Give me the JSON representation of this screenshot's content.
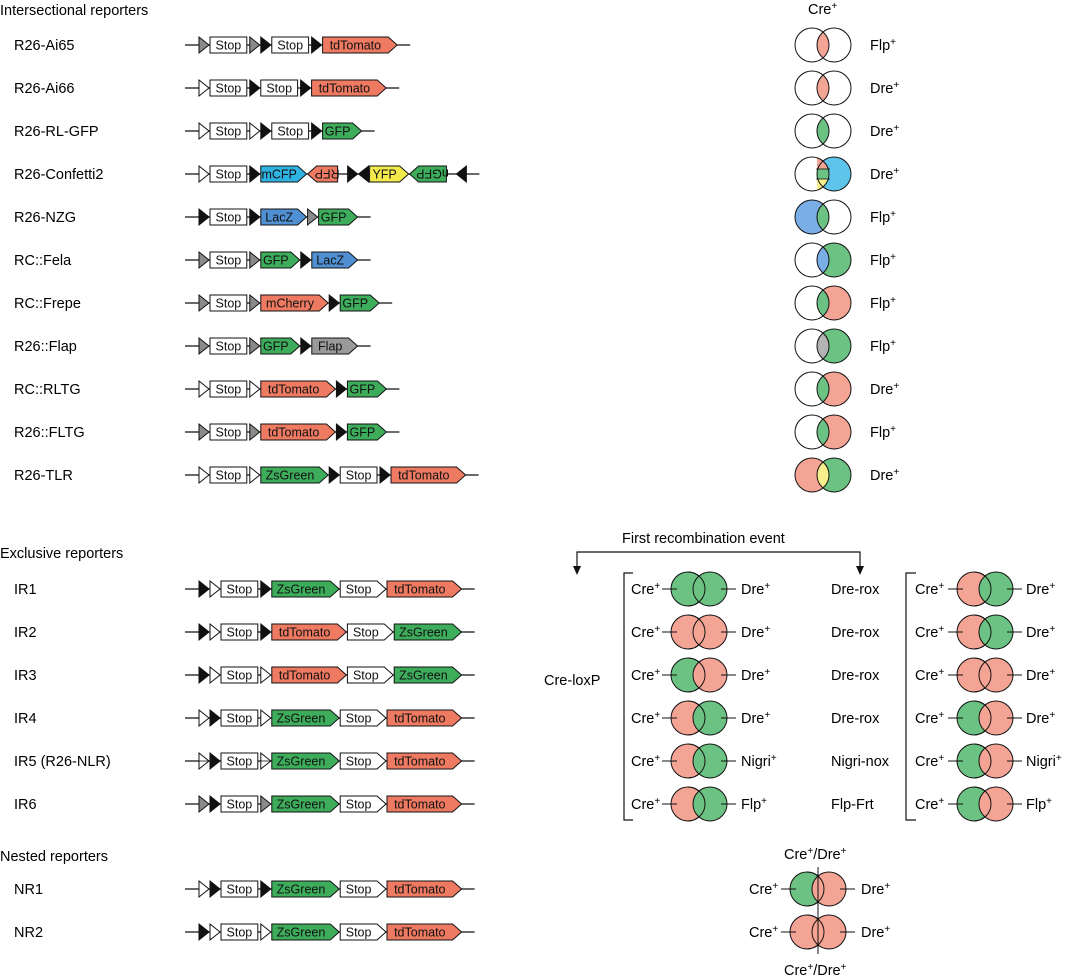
{
  "headers": {
    "intersectional": "Intersectional reporters",
    "exclusive": "Exclusive reporters",
    "nested": "Nested reporters",
    "cre_top": "Cre",
    "first_event": "First recombination event",
    "cre_loxp": "Cre-loxP"
  },
  "colors": {
    "red": "#ef7a62",
    "green": "#3dac5b",
    "blue": "#4f8fd2",
    "cyan": "#2fb3e3",
    "yellow": "#f4ea4c",
    "gray": "#9a9a9a",
    "venn_red": "#f4a494",
    "venn_green": "#6cc283",
    "venn_blue": "#7aaee6",
    "venn_cyan": "#5fc4ea",
    "venn_yellow": "#f6ee8a",
    "venn_gray": "#b4b4b4"
  },
  "intersectional": [
    {
      "name": "R26-Ai65",
      "construct": [
        [
          "tg"
        ],
        [
          "st",
          "Stop"
        ],
        [
          "tg"
        ],
        [
          "tb"
        ],
        [
          "st",
          "Stop"
        ],
        [
          "tb"
        ],
        [
          "rb",
          "tdTomato",
          "red"
        ]
      ],
      "venn": {
        "l": "white",
        "r": "white",
        "o": "red"
      },
      "right": "Flp"
    },
    {
      "name": "R26-Ai66",
      "construct": [
        [
          "to"
        ],
        [
          "st",
          "Stop"
        ],
        [
          "tb"
        ],
        [
          "st",
          "Stop"
        ],
        [
          "tb"
        ],
        [
          "rb",
          "tdTomato",
          "red"
        ]
      ],
      "venn": {
        "l": "white",
        "r": "white",
        "o": "red"
      },
      "right": "Dre"
    },
    {
      "name": "R26-RL-GFP",
      "construct": [
        [
          "to"
        ],
        [
          "st",
          "Stop"
        ],
        [
          "to"
        ],
        [
          "tb"
        ],
        [
          "st",
          "Stop"
        ],
        [
          "tb"
        ],
        [
          "rb",
          "GFP",
          "green"
        ]
      ],
      "venn": {
        "l": "white",
        "r": "white",
        "o": "green"
      },
      "right": "Dre"
    },
    {
      "name": "R26-Confetti2",
      "construct": [
        [
          "to"
        ],
        [
          "st",
          "Stop"
        ],
        [
          "tb"
        ],
        [
          "rb",
          "mCFP",
          "cyan"
        ],
        [
          "lb",
          "RFP",
          "red",
          "flip"
        ],
        [
          "tb"
        ],
        [
          "tbl"
        ],
        [
          "rb",
          "YFP",
          "yellow"
        ],
        [
          "lb",
          "nGFP",
          "green",
          "flip"
        ],
        [
          "tbl"
        ]
      ],
      "venn": {
        "l": "white",
        "r": "cyan",
        "o": "confetti"
      },
      "right": "Dre"
    },
    {
      "name": "R26-NZG",
      "construct": [
        [
          "tb"
        ],
        [
          "st",
          "Stop"
        ],
        [
          "tb"
        ],
        [
          "rb",
          "LacZ",
          "blue"
        ],
        [
          "tg"
        ],
        [
          "rb",
          "GFP",
          "green"
        ]
      ],
      "venn": {
        "l": "blue",
        "r": "white",
        "o": "green"
      },
      "right": "Flp"
    },
    {
      "name": "RC::Fela",
      "construct": [
        [
          "tg"
        ],
        [
          "st",
          "Stop"
        ],
        [
          "tg"
        ],
        [
          "rb",
          "GFP",
          "green"
        ],
        [
          "tb"
        ],
        [
          "rb",
          "LacZ",
          "blue"
        ]
      ],
      "venn": {
        "l": "white",
        "r": "green",
        "o": "blue"
      },
      "right": "Flp"
    },
    {
      "name": "RC::Frepe",
      "construct": [
        [
          "tg"
        ],
        [
          "st",
          "Stop"
        ],
        [
          "tg"
        ],
        [
          "rb",
          "mCherry",
          "red"
        ],
        [
          "tb"
        ],
        [
          "rb",
          "GFP",
          "green"
        ]
      ],
      "venn": {
        "l": "white",
        "r": "red",
        "o": "green"
      },
      "right": "Flp"
    },
    {
      "name": "R26::Flap",
      "construct": [
        [
          "tg"
        ],
        [
          "st",
          "Stop"
        ],
        [
          "tg"
        ],
        [
          "rb",
          "GFP",
          "green"
        ],
        [
          "tb"
        ],
        [
          "rb",
          "Flap",
          "gray"
        ]
      ],
      "venn": {
        "l": "white",
        "r": "green",
        "o": "gray"
      },
      "right": "Flp"
    },
    {
      "name": "RC::RLTG",
      "construct": [
        [
          "to"
        ],
        [
          "st",
          "Stop"
        ],
        [
          "to"
        ],
        [
          "rb",
          "tdTomato",
          "red"
        ],
        [
          "tb"
        ],
        [
          "rb",
          "GFP",
          "green"
        ]
      ],
      "venn": {
        "l": "white",
        "r": "red",
        "o": "green"
      },
      "right": "Dre"
    },
    {
      "name": "R26::FLTG",
      "construct": [
        [
          "tg"
        ],
        [
          "st",
          "Stop"
        ],
        [
          "tg"
        ],
        [
          "rb",
          "tdTomato",
          "red"
        ],
        [
          "tb"
        ],
        [
          "rb",
          "GFP",
          "green"
        ]
      ],
      "venn": {
        "l": "white",
        "r": "red",
        "o": "green"
      },
      "right": "Flp"
    },
    {
      "name": "R26-TLR",
      "construct": [
        [
          "to"
        ],
        [
          "st",
          "Stop"
        ],
        [
          "to"
        ],
        [
          "rb",
          "ZsGreen",
          "green"
        ],
        [
          "tb"
        ],
        [
          "st",
          "Stop"
        ],
        [
          "tb"
        ],
        [
          "rb",
          "tdTomato",
          "red"
        ]
      ],
      "venn": {
        "l": "red",
        "r": "green",
        "o": "yellow"
      },
      "right": "Dre"
    }
  ],
  "exclusive": [
    {
      "name": "IR1",
      "construct": [
        [
          "tb"
        ],
        [
          "to"
        ],
        [
          "st",
          "Stop"
        ],
        [
          "tb"
        ],
        [
          "rb",
          "ZsGreen",
          "green"
        ],
        [
          "ro",
          "Stop"
        ],
        [
          "ro",
          "tdTomato",
          "red"
        ]
      ]
    },
    {
      "name": "IR2",
      "construct": [
        [
          "tb"
        ],
        [
          "to"
        ],
        [
          "st",
          "Stop"
        ],
        [
          "tb"
        ],
        [
          "rb",
          "tdTomato",
          "red"
        ],
        [
          "ro",
          "Stop"
        ],
        [
          "ro",
          "ZsGreen",
          "green"
        ]
      ]
    },
    {
      "name": "IR3",
      "construct": [
        [
          "tb"
        ],
        [
          "to"
        ],
        [
          "st",
          "Stop"
        ],
        [
          "to"
        ],
        [
          "rb",
          "tdTomato",
          "red"
        ],
        [
          "ro",
          "Stop"
        ],
        [
          "ro",
          "ZsGreen",
          "green"
        ]
      ]
    },
    {
      "name": "IR4",
      "construct": [
        [
          "to"
        ],
        [
          "tb"
        ],
        [
          "st",
          "Stop"
        ],
        [
          "to"
        ],
        [
          "rb",
          "ZsGreen",
          "green"
        ],
        [
          "ro",
          "Stop"
        ],
        [
          "ro",
          "tdTomato",
          "red"
        ]
      ]
    },
    {
      "name": "IR5 (R26-NLR)",
      "construct": [
        [
          "tx"
        ],
        [
          "tb"
        ],
        [
          "st",
          "Stop"
        ],
        [
          "tx"
        ],
        [
          "rb",
          "ZsGreen",
          "green"
        ],
        [
          "ro",
          "Stop"
        ],
        [
          "ro",
          "tdTomato",
          "red"
        ]
      ]
    },
    {
      "name": "IR6",
      "construct": [
        [
          "tg"
        ],
        [
          "tb"
        ],
        [
          "st",
          "Stop"
        ],
        [
          "tg"
        ],
        [
          "rb",
          "ZsGreen",
          "green"
        ],
        [
          "ro",
          "Stop"
        ],
        [
          "ro",
          "tdTomato",
          "red"
        ]
      ]
    }
  ],
  "exclusive_venn": [
    {
      "lc": "Cre",
      "rc": "Dre",
      "mid": "Dre-rox",
      "r2": "Dre",
      "left": [
        "green",
        "green"
      ],
      "right": [
        "red",
        "green"
      ]
    },
    {
      "lc": "Cre",
      "rc": "Dre",
      "mid": "Dre-rox",
      "r2": "Dre",
      "left": [
        "red",
        "red"
      ],
      "right": [
        "red",
        "green"
      ]
    },
    {
      "lc": "Cre",
      "rc": "Dre",
      "mid": "Dre-rox",
      "r2": "Dre",
      "left": [
        "green",
        "red"
      ],
      "right": [
        "red",
        "red"
      ]
    },
    {
      "lc": "Cre",
      "rc": "Dre",
      "mid": "Dre-rox",
      "r2": "Dre",
      "left": [
        "red",
        "green"
      ],
      "right": [
        "green",
        "red"
      ]
    },
    {
      "lc": "Cre",
      "rc": "Nigri",
      "mid": "Nigri-nox",
      "r2": "Nigri",
      "left": [
        "red",
        "green"
      ],
      "right": [
        "green",
        "red"
      ]
    },
    {
      "lc": "Cre",
      "rc": "Flp",
      "mid": "Flp-Frt",
      "r2": "Flp",
      "left": [
        "red",
        "green"
      ],
      "right": [
        "green",
        "red"
      ]
    }
  ],
  "nested": [
    {
      "name": "NR1",
      "construct": [
        [
          "to"
        ],
        [
          "tb"
        ],
        [
          "st",
          "Stop"
        ],
        [
          "tb"
        ],
        [
          "rb",
          "ZsGreen",
          "green"
        ],
        [
          "ro",
          "Stop"
        ],
        [
          "ro",
          "tdTomato",
          "red"
        ]
      ],
      "left": "Cre",
      "right": "Dre",
      "top": "Cre",
      "top2": "Dre",
      "circles": [
        "green",
        "red"
      ]
    },
    {
      "name": "NR2",
      "construct": [
        [
          "tb"
        ],
        [
          "to"
        ],
        [
          "st",
          "Stop"
        ],
        [
          "to"
        ],
        [
          "rb",
          "ZsGreen",
          "green"
        ],
        [
          "ro",
          "Stop"
        ],
        [
          "ro",
          "tdTomato",
          "red"
        ]
      ],
      "left": "Cre",
      "right": "Dre",
      "bottom": "Cre",
      "bottom2": "Dre",
      "circles": [
        "red",
        "red"
      ]
    }
  ]
}
